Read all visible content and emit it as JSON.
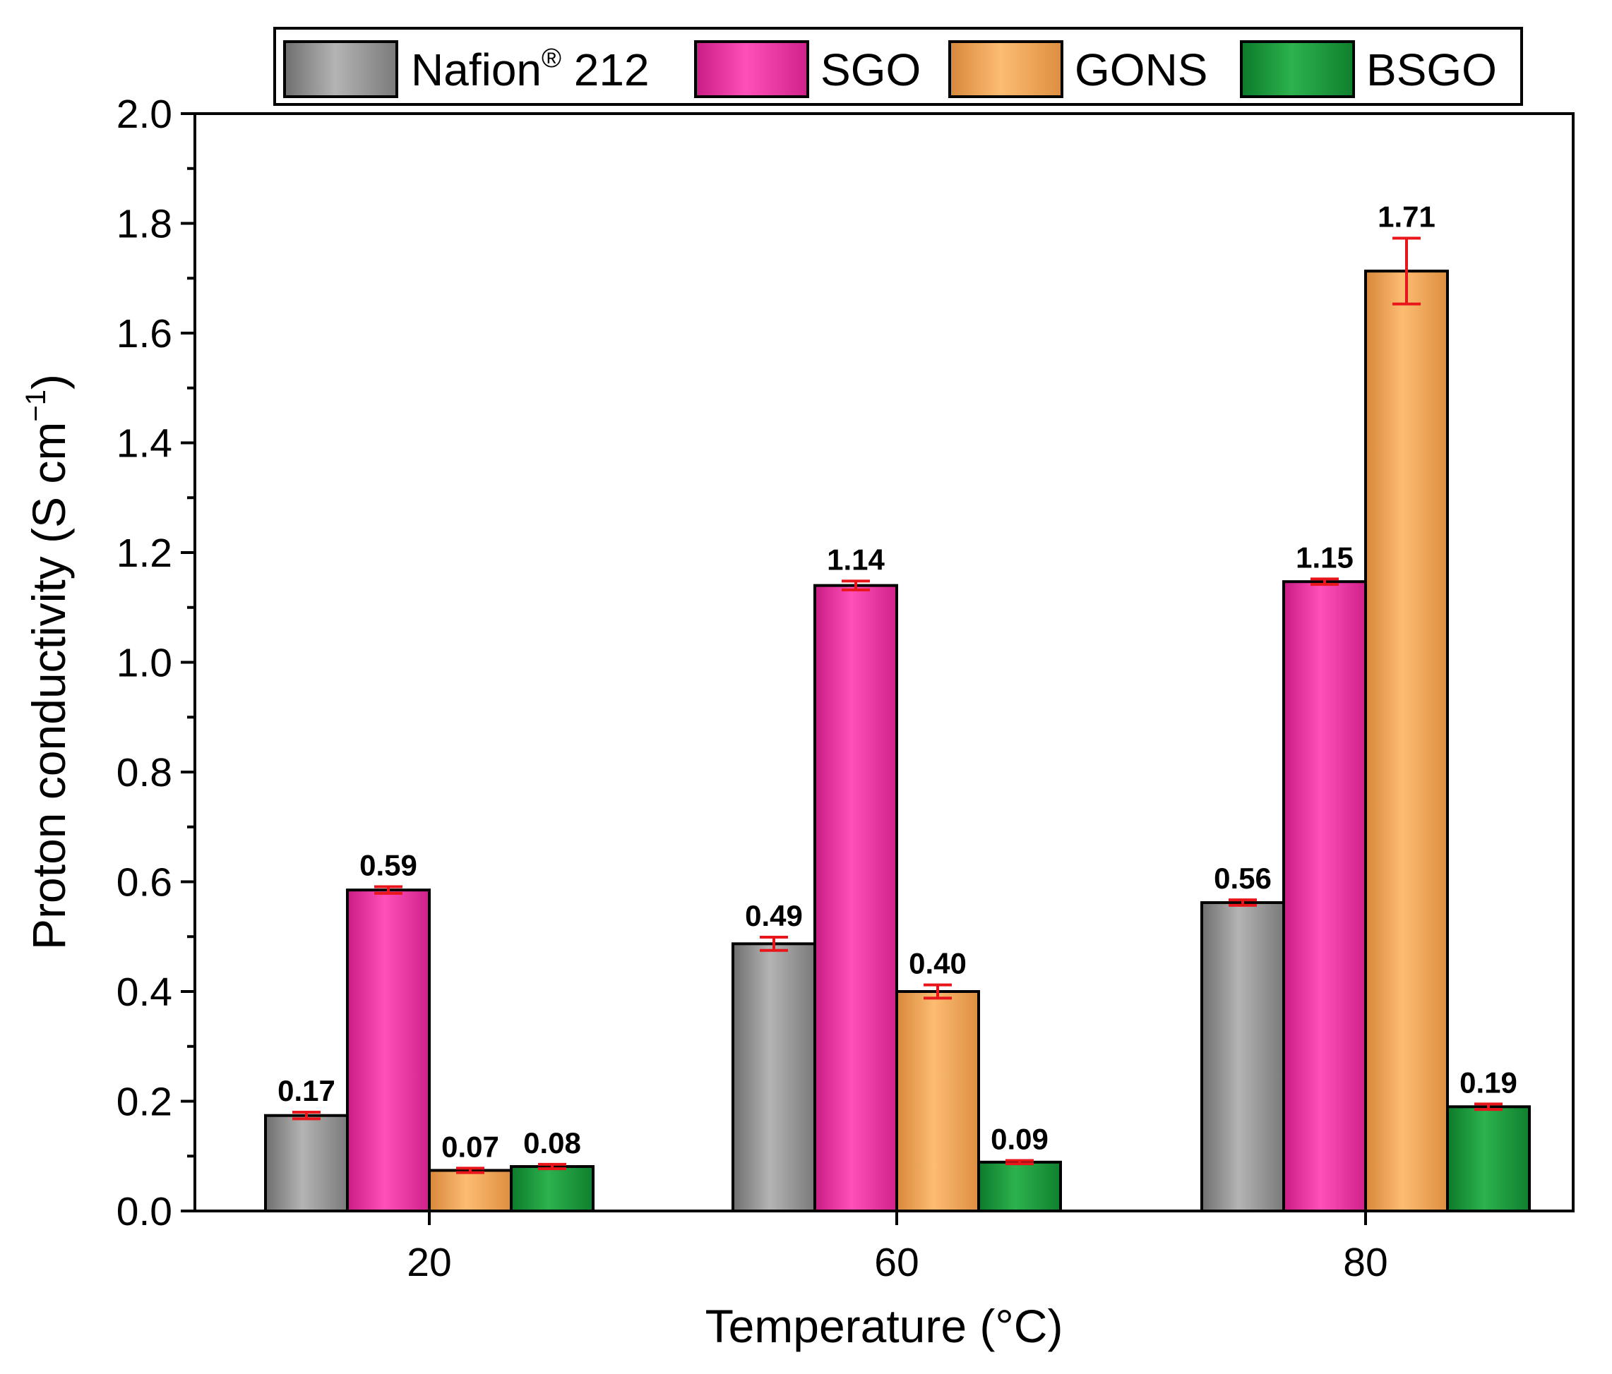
{
  "chart_data": {
    "type": "bar",
    "title": "",
    "xlabel": "Temperature (°C)",
    "ylabel": "Proton conductivity (S cm",
    "ylabel_superscript": "−1",
    "ylabel_close": ")",
    "ylim": [
      0,
      2.0
    ],
    "yticks": [
      0.0,
      0.2,
      0.4,
      0.6,
      0.8,
      1.0,
      1.2,
      1.4,
      1.6,
      1.8,
      2.0
    ],
    "ytick_labels": [
      "0.0",
      "0.2",
      "0.4",
      "0.6",
      "0.8",
      "1.0",
      "1.2",
      "1.4",
      "1.6",
      "1.8",
      "2.0"
    ],
    "categories": [
      "20",
      "60",
      "80"
    ],
    "legend_position": "top",
    "series": [
      {
        "name": "Nafion",
        "name_superscript": "®",
        "name_suffix": " 212",
        "color": "#8c8c8c",
        "values": [
          0.174,
          0.487,
          0.562
        ],
        "errors": [
          0.006,
          0.012,
          0.005
        ],
        "labels": [
          "0.17",
          "0.49",
          "0.56"
        ]
      },
      {
        "name": "SGO",
        "color": "#ea2a9c",
        "values": [
          0.585,
          1.14,
          1.147
        ],
        "errors": [
          0.006,
          0.008,
          0.005
        ],
        "labels": [
          "0.59",
          "1.14",
          "1.15"
        ]
      },
      {
        "name": "GONS",
        "color": "#f0a24e",
        "values": [
          0.074,
          0.4,
          1.713
        ],
        "errors": [
          0.004,
          0.012,
          0.06
        ],
        "labels": [
          "0.07",
          "0.40",
          "1.71"
        ]
      },
      {
        "name": "BSGO",
        "color": "#169238",
        "values": [
          0.081,
          0.089,
          0.19
        ],
        "errors": [
          0.004,
          0.003,
          0.005
        ],
        "labels": [
          "0.08",
          "0.09",
          "0.19"
        ]
      }
    ],
    "error_bar_color": "#e8161b"
  }
}
